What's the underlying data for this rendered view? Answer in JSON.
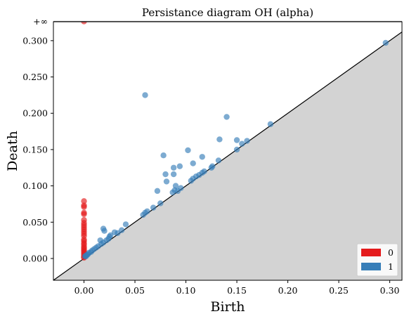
{
  "chart_data": {
    "type": "scatter",
    "title": "Persistance diagram OH (alpha)",
    "xlabel": "Birth",
    "ylabel": "Death",
    "xlim": [
      -0.03,
      0.312
    ],
    "ylim": [
      -0.03,
      0.326
    ],
    "x_ticks": [
      0.0,
      0.05,
      0.1,
      0.15,
      0.2,
      0.25,
      0.3
    ],
    "x_tick_labels": [
      "0.00",
      "0.05",
      "0.10",
      "0.15",
      "0.20",
      "0.25",
      "0.30"
    ],
    "y_ticks": [
      0.0,
      0.05,
      0.1,
      0.15,
      0.2,
      0.25,
      0.3
    ],
    "y_tick_labels": [
      "0.000",
      "0.050",
      "0.100",
      "0.150",
      "0.200",
      "0.250",
      "0.300"
    ],
    "infinity": {
      "label": "+∞",
      "y": 0.3265
    },
    "diagonal": true,
    "legend": {
      "position": "bottom-right",
      "entries": [
        "0",
        "1"
      ]
    },
    "series": [
      {
        "name": "0",
        "color": "#e41a1c",
        "points": [
          [
            0.0,
            0.3265
          ],
          [
            0.0,
            0.079
          ],
          [
            0.0,
            0.073
          ],
          [
            0.0,
            0.071
          ],
          [
            0.0,
            0.063
          ],
          [
            0.0,
            0.061
          ],
          [
            0.0,
            0.053
          ],
          [
            0.0,
            0.049
          ],
          [
            0.0,
            0.046
          ],
          [
            0.0,
            0.043
          ],
          [
            0.0,
            0.04
          ],
          [
            0.0,
            0.037
          ],
          [
            0.0,
            0.034
          ],
          [
            0.0,
            0.031
          ],
          [
            0.0,
            0.026
          ],
          [
            0.0,
            0.024
          ],
          [
            0.0,
            0.021
          ],
          [
            0.0,
            0.019
          ],
          [
            0.0,
            0.016
          ],
          [
            0.0,
            0.014
          ],
          [
            0.0,
            0.012
          ],
          [
            0.0,
            0.01
          ],
          [
            0.0,
            0.008
          ],
          [
            0.0,
            0.006
          ],
          [
            0.0,
            0.004
          ],
          [
            0.0,
            0.002
          ],
          [
            0.0,
            0.001
          ]
        ]
      },
      {
        "name": "1",
        "color": "#377eb8",
        "points": [
          [
            0.296,
            0.297
          ],
          [
            0.06,
            0.225
          ],
          [
            0.14,
            0.195
          ],
          [
            0.183,
            0.185
          ],
          [
            0.133,
            0.164
          ],
          [
            0.15,
            0.163
          ],
          [
            0.16,
            0.162
          ],
          [
            0.155,
            0.158
          ],
          [
            0.15,
            0.15
          ],
          [
            0.102,
            0.149
          ],
          [
            0.078,
            0.142
          ],
          [
            0.116,
            0.14
          ],
          [
            0.132,
            0.135
          ],
          [
            0.107,
            0.131
          ],
          [
            0.094,
            0.127
          ],
          [
            0.088,
            0.125
          ],
          [
            0.126,
            0.127
          ],
          [
            0.125,
            0.125
          ],
          [
            0.118,
            0.12
          ],
          [
            0.116,
            0.118
          ],
          [
            0.113,
            0.115
          ],
          [
            0.08,
            0.116
          ],
          [
            0.088,
            0.116
          ],
          [
            0.11,
            0.113
          ],
          [
            0.107,
            0.11
          ],
          [
            0.105,
            0.107
          ],
          [
            0.081,
            0.106
          ],
          [
            0.09,
            0.1
          ],
          [
            0.095,
            0.097
          ],
          [
            0.072,
            0.093
          ],
          [
            0.089,
            0.094
          ],
          [
            0.092,
            0.093
          ],
          [
            0.087,
            0.091
          ],
          [
            0.075,
            0.076
          ],
          [
            0.068,
            0.07
          ],
          [
            0.062,
            0.065
          ],
          [
            0.06,
            0.063
          ],
          [
            0.058,
            0.06
          ],
          [
            0.041,
            0.047
          ],
          [
            0.037,
            0.039
          ],
          [
            0.03,
            0.036
          ],
          [
            0.033,
            0.035
          ],
          [
            0.019,
            0.041
          ],
          [
            0.02,
            0.038
          ],
          [
            0.026,
            0.032
          ],
          [
            0.025,
            0.03
          ],
          [
            0.016,
            0.025
          ],
          [
            0.024,
            0.027
          ],
          [
            0.022,
            0.025
          ],
          [
            0.019,
            0.022
          ],
          [
            0.017,
            0.02
          ],
          [
            0.014,
            0.017
          ],
          [
            0.012,
            0.015
          ],
          [
            0.01,
            0.013
          ],
          [
            0.008,
            0.011
          ],
          [
            0.007,
            0.009
          ],
          [
            0.005,
            0.008
          ],
          [
            0.004,
            0.006
          ],
          [
            0.003,
            0.005
          ],
          [
            0.002,
            0.004
          ],
          [
            0.001,
            0.003
          ],
          [
            0.002,
            0.003
          ]
        ]
      }
    ]
  }
}
